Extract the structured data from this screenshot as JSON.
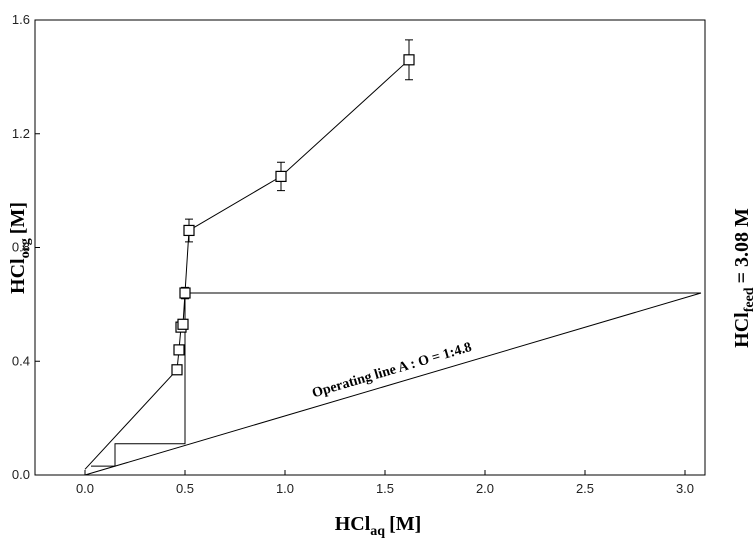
{
  "chart_data": {
    "type": "scatter",
    "x_label": {
      "main": "HCl",
      "sub": "aq",
      "unit": "[M]"
    },
    "y_label": {
      "main": "HCl",
      "sub": "org",
      "unit": "[M]"
    },
    "feed_label": {
      "main": "HCl",
      "sub": "feed",
      "rest": "= 3.08 M"
    },
    "operating_label": "Operating line A : O = 1:4.8",
    "xlim": [
      -0.25,
      3.1
    ],
    "ylim": [
      0,
      1.6
    ],
    "xticks": [
      {
        "value": 0,
        "label": "0.0"
      },
      0.5,
      {
        "value": 1,
        "label": "1.0"
      },
      1.5,
      {
        "value": 2,
        "label": "2.0"
      },
      2.5,
      {
        "value": 3,
        "label": "3.0"
      }
    ],
    "yticks": [
      {
        "value": 0,
        "label": "0.0"
      },
      0.4,
      0.8,
      1.2,
      1.6
    ],
    "series": [
      {
        "color": "#000000",
        "x": [
          0.46,
          0.47,
          0.48,
          0.49,
          0.5,
          0.52,
          0.98,
          1.62
        ],
        "values": [
          0.37,
          0.44,
          0.52,
          0.53,
          0.64,
          0.86,
          1.05,
          1.46
        ],
        "errors": [
          0.01,
          0.01,
          0.01,
          0.01,
          0.02,
          0.04,
          0.05,
          0.07
        ]
      }
    ],
    "lines": [
      {
        "x": [
          0.0,
          0.46
        ],
        "values": [
          0.02,
          0.37
        ]
      },
      {
        "x": [
          0.0,
          3.08
        ],
        "values": [
          0.0,
          0.64
        ]
      },
      {
        "x": [
          3.08,
          0.5,
          0.5,
          0.15,
          0.15,
          0.03
        ],
        "values": [
          0.64,
          0.64,
          0.11,
          0.11,
          0.031,
          0.031
        ]
      }
    ]
  }
}
